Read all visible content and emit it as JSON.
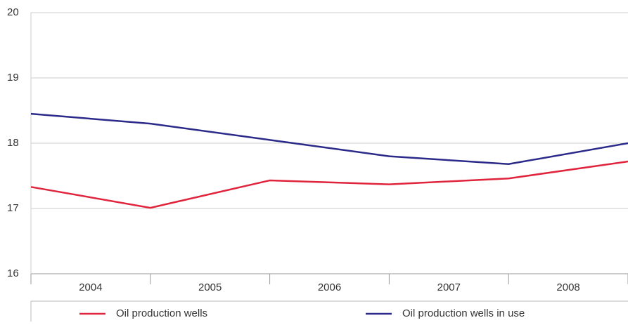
{
  "chart_data": {
    "type": "line",
    "categories": [
      "2004",
      "2005",
      "2006",
      "2007",
      "2008",
      null
    ],
    "series": [
      {
        "name": "Oil production wells",
        "color": "#e0243c",
        "values": [
          17.33,
          17.01,
          17.43,
          17.37,
          17.46,
          17.72
        ]
      },
      {
        "name": "Oil production wells in use",
        "color": "#2b2a8a",
        "values": [
          18.45,
          18.3,
          18.05,
          17.8,
          17.68,
          18.0
        ]
      }
    ],
    "ylim": [
      16,
      20
    ],
    "yticks": [
      16,
      17,
      18,
      19,
      20
    ],
    "grid": true
  }
}
